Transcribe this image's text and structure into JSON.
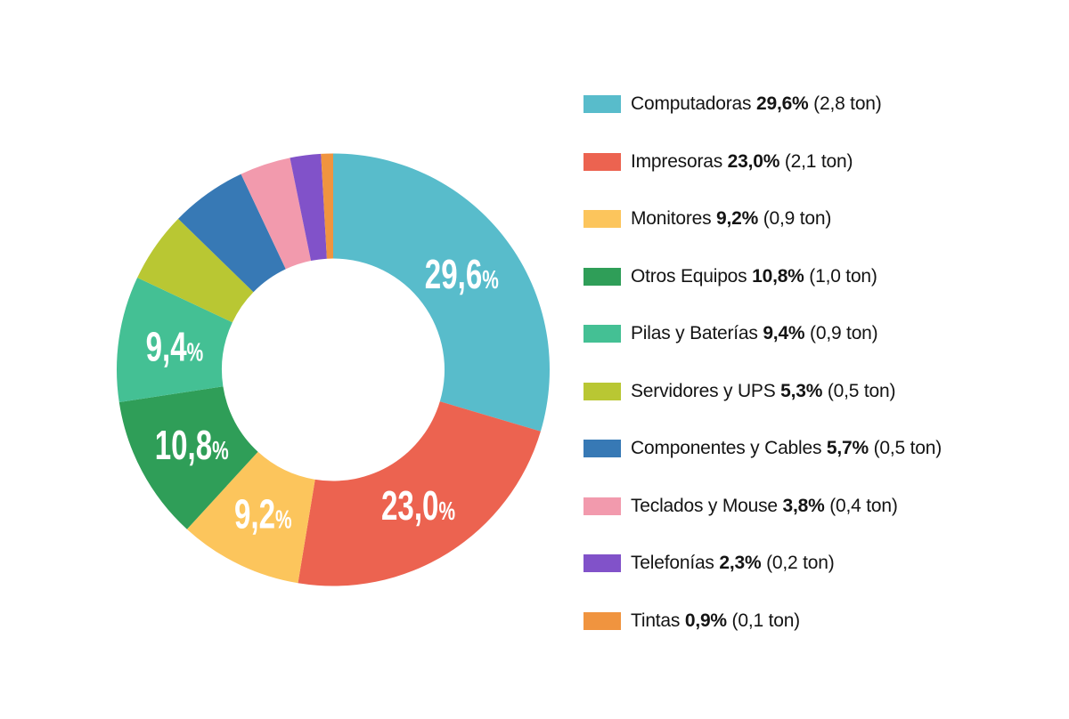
{
  "chart_data": {
    "type": "pie",
    "subtype": "donut",
    "title": "",
    "legend_position": "right",
    "start_angle": "top",
    "direction": "clockwise",
    "categories": [
      "Computadoras",
      "Impresoras",
      "Monitores",
      "Otros Equipos",
      "Pilas y Baterías",
      "Servidores y UPS",
      "Componentes y Cables",
      "Teclados y Mouse",
      "Telefonías",
      "Tintas"
    ],
    "values": [
      29.6,
      23.0,
      9.2,
      10.8,
      9.4,
      5.3,
      5.7,
      3.8,
      2.3,
      0.9
    ],
    "tons": [
      2.8,
      2.1,
      0.9,
      1.0,
      0.9,
      0.5,
      0.5,
      0.4,
      0.2,
      0.1
    ],
    "colors": [
      "#58bccb",
      "#ec6350",
      "#fcc55c",
      "#2f9e58",
      "#44c094",
      "#b9c733",
      "#3779b5",
      "#f29aad",
      "#8152c9",
      "#f0943f"
    ],
    "slice_labels": [
      "29,6",
      "23,0",
      "9,2",
      "10,8",
      "9,4",
      "",
      "",
      "",
      "",
      ""
    ],
    "slice_label_suffix": "%",
    "legend_pct_labels": [
      "29,6%",
      "23,0%",
      "9,2%",
      "10,8%",
      "9,4%",
      "5,3%",
      "5,7%",
      "3,8%",
      "2,3%",
      "0,9%"
    ],
    "legend_ton_labels": [
      "(2,8 ton)",
      "(2,1 ton)",
      "(0,9 ton)",
      "(1,0 ton)",
      "(0,9 ton)",
      "(0,5 ton)",
      "(0,5 ton)",
      "(0,4 ton)",
      "(0,2 ton)",
      "(0,1 ton)"
    ]
  },
  "colors": {
    "background": "#ffffff",
    "slice_label_text": "#ffffff",
    "legend_text": "#141414"
  }
}
